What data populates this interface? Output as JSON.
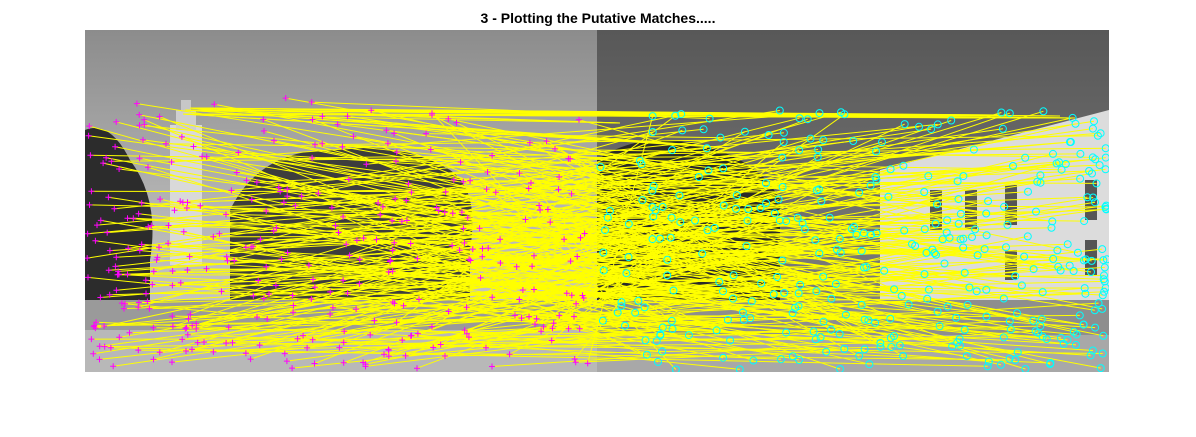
{
  "figure": {
    "title": "3 - Plotting the Putative Matches....."
  },
  "chart_data": {
    "type": "scatter",
    "title": "3 - Plotting the Putative Matches.....",
    "axes_visible": false,
    "panels": [
      {
        "name": "",
        "tone": "bright sky with clock tower and trees"
      },
      {
        "name": "",
        "tone": "darker sky with white building"
      }
    ],
    "series": [
      {
        "marker": "plus",
        "color": "#ff00ff",
        "panel": 0
      },
      {
        "marker": "circle",
        "color": "#00ffff",
        "panel": 1
      },
      {
        "mark": "match-line",
        "color": "#ffff00"
      }
    ]
  }
}
